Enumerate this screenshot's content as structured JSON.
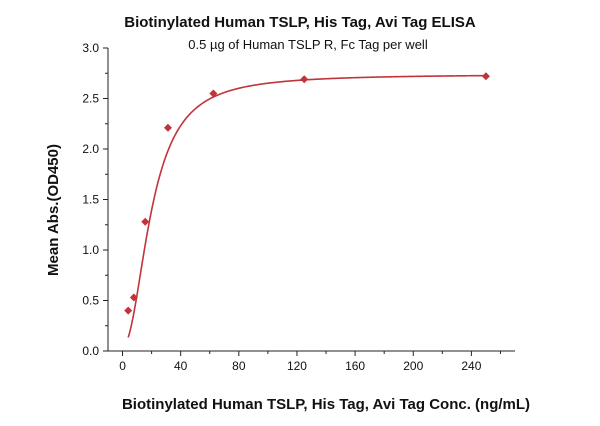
{
  "chart_data": {
    "type": "scatter",
    "title": "Biotinylated Human TSLP, His Tag, Avi Tag ELISA",
    "subtitle": "0.5 µg of Human TSLP R, Fc Tag per well",
    "xlabel": "Biotinylated Human TSLP, His Tag, Avi Tag Conc. (ng/mL)",
    "ylabel": "Mean Abs.(OD450)",
    "xlim": [
      -10,
      270
    ],
    "ylim": [
      0,
      3.0
    ],
    "x_ticks": [
      0,
      40,
      80,
      120,
      160,
      200,
      240
    ],
    "y_ticks": [
      0.0,
      0.5,
      1.0,
      1.5,
      2.0,
      2.5,
      3.0
    ],
    "x_tick_labels": [
      "0",
      "40",
      "80",
      "120",
      "160",
      "200",
      "240"
    ],
    "y_tick_labels": [
      "0.0",
      "0.5",
      "1.0",
      "1.5",
      "2.0",
      "2.5",
      "3.0"
    ],
    "grid": false,
    "color": "#c0343a",
    "series": [
      {
        "x": [
          3.9,
          7.8,
          15.6,
          31.25,
          62.5,
          125,
          250
        ],
        "y": [
          0.4,
          0.53,
          1.28,
          2.21,
          2.55,
          2.69,
          2.72
        ],
        "marker": "diamond",
        "fit": "4PL"
      }
    ]
  }
}
